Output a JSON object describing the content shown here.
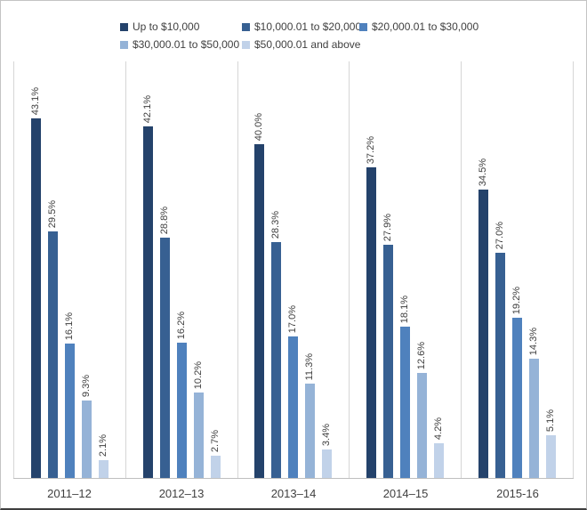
{
  "chart_data": {
    "type": "bar",
    "title": "",
    "xlabel": "",
    "ylabel": "",
    "ylim": [
      0,
      50
    ],
    "legend_position": "top",
    "grid": "vertical category separators only",
    "data_labels": "rotated 90deg above each bar, format one decimal + %",
    "categories": [
      "2011–12",
      "2012–13",
      "2013–14",
      "2014–15",
      "2015-16"
    ],
    "series": [
      {
        "name": "Up to $10,000",
        "color": "#24426b",
        "values": [
          43.1,
          42.1,
          40.0,
          37.2,
          34.5
        ]
      },
      {
        "name": "$10,000.01 to $20,000",
        "color": "#376092",
        "values": [
          29.5,
          28.8,
          28.3,
          27.9,
          27.0
        ]
      },
      {
        "name": "$20,000.01 to $30,000",
        "color": "#4f81bd",
        "values": [
          16.1,
          16.2,
          17.0,
          18.1,
          19.2
        ]
      },
      {
        "name": "$30,000.01 to $50,000",
        "color": "#95b3d7",
        "values": [
          9.3,
          10.2,
          11.3,
          12.6,
          14.3
        ]
      },
      {
        "name": "$50,000.01 and above",
        "color": "#c1d2e9",
        "values": [
          2.1,
          2.7,
          3.4,
          4.2,
          5.1
        ]
      }
    ],
    "label_suffix": "%",
    "axis_color": "#bfbfbf",
    "separator_color": "#d6d6d6",
    "text_color": "#404040"
  }
}
